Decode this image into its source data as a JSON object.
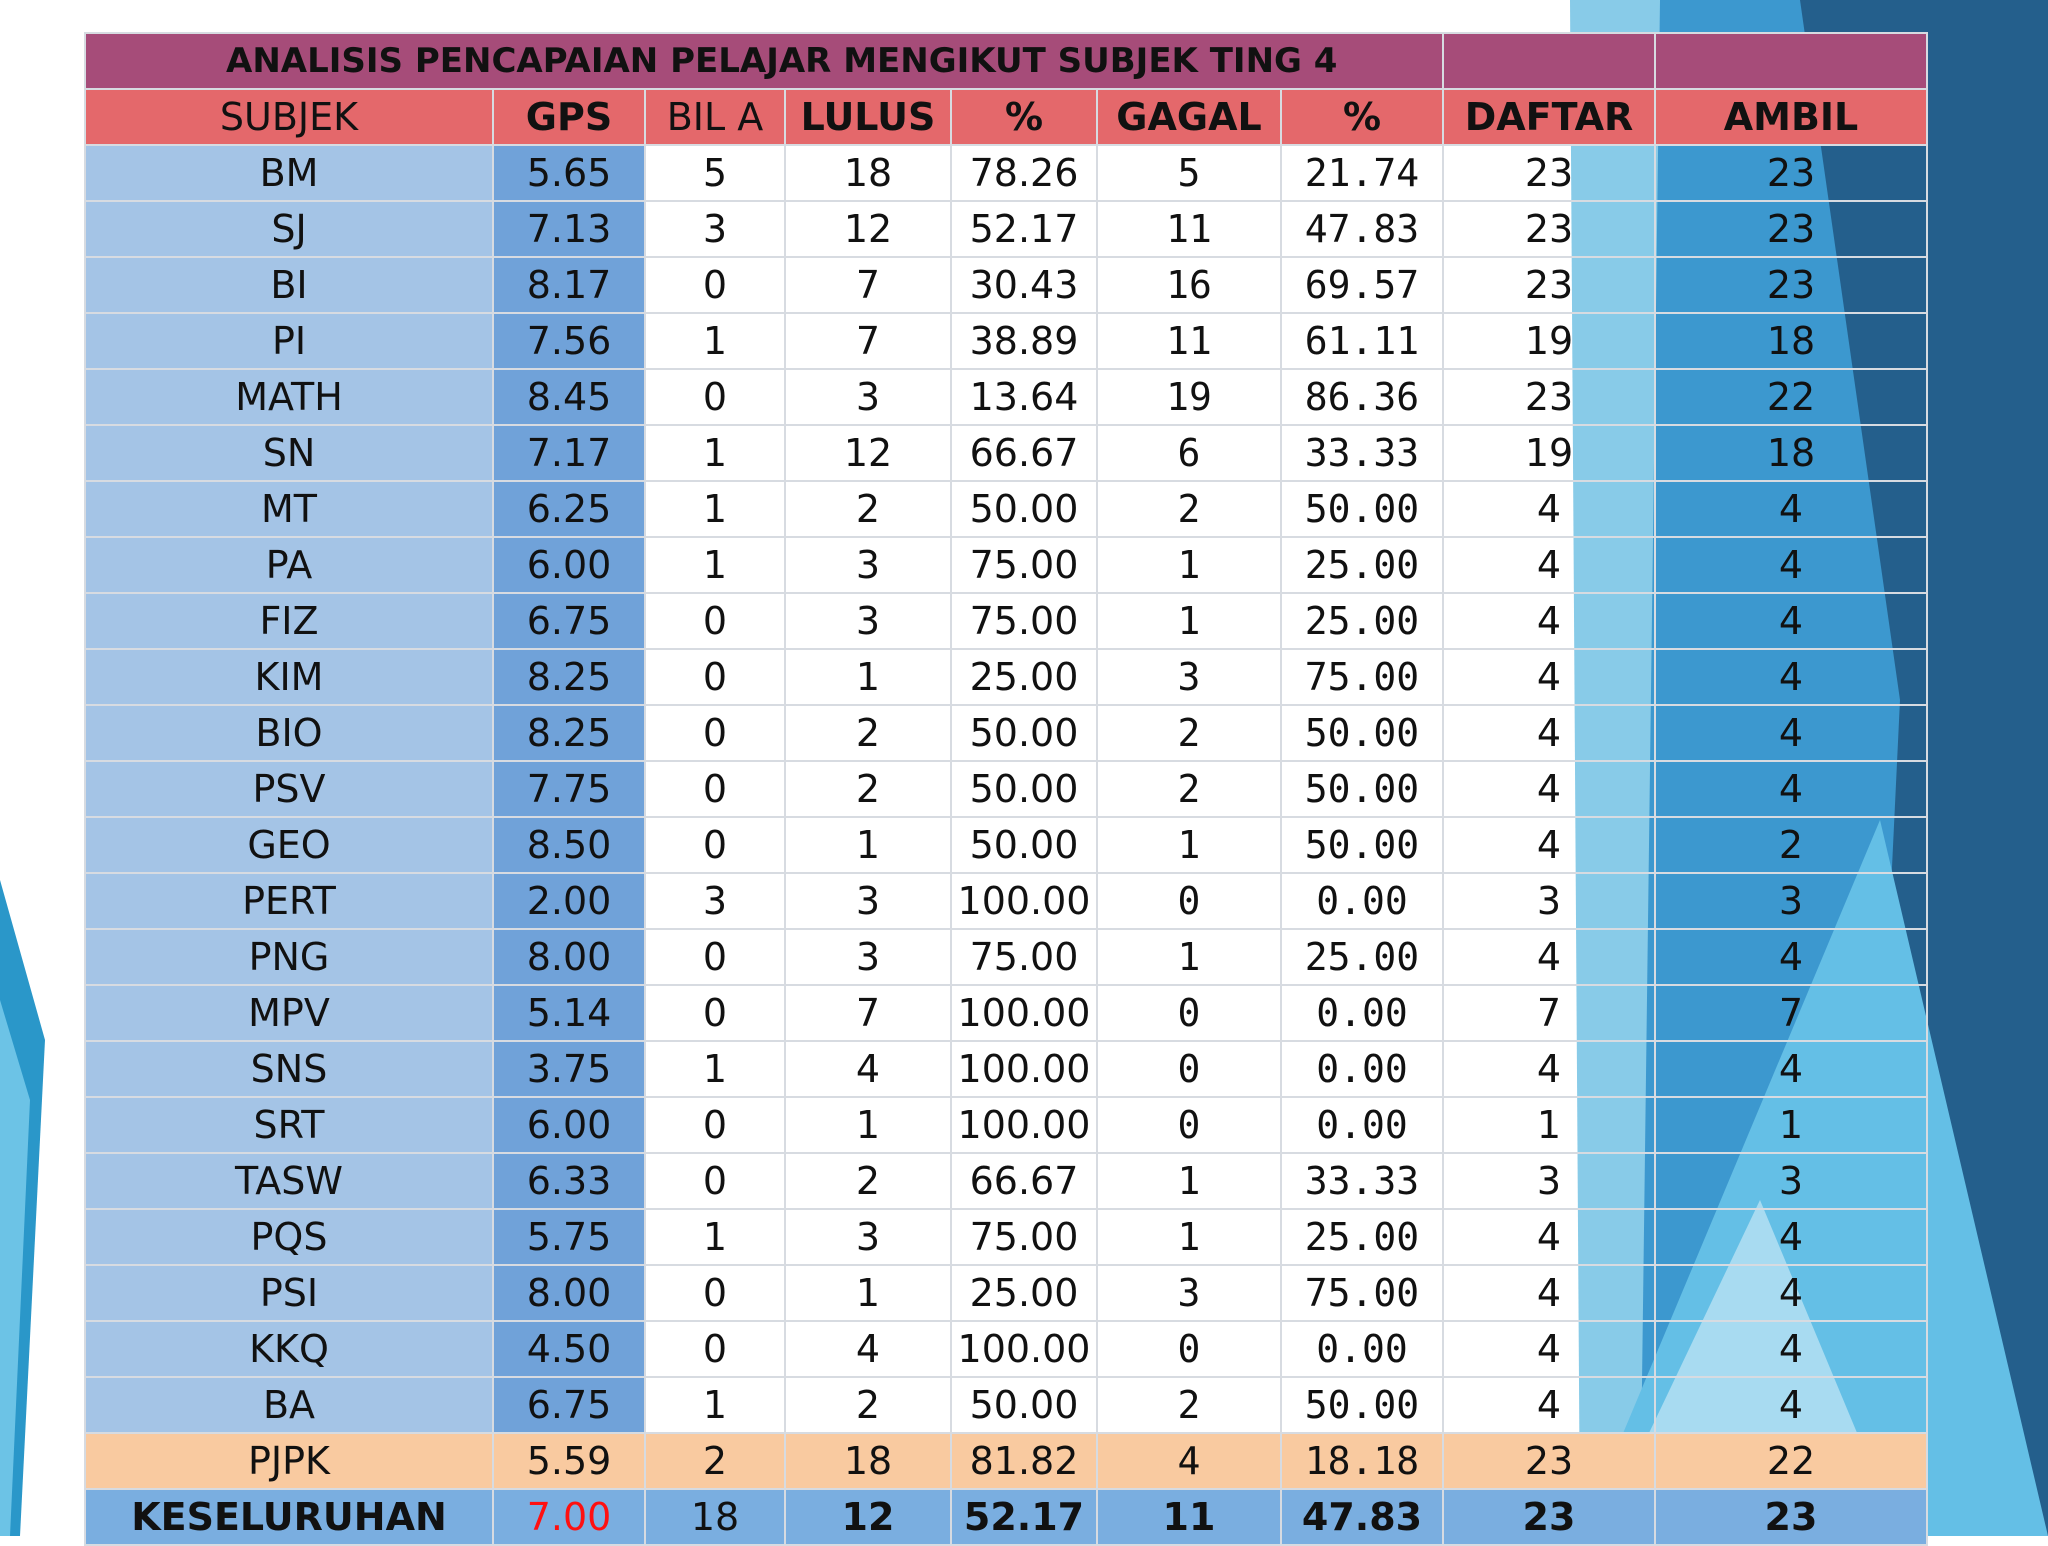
{
  "title": "ANALISIS PENCAPAIAN PELAJAR MENGIKUT SUBJEK TING 4",
  "headers": [
    "SUBJEK",
    "GPS",
    "BIL A",
    "LULUS",
    "%",
    "GAGAL",
    "%",
    "DAFTAR",
    "AMBIL"
  ],
  "rows": [
    [
      "BM",
      "5.65",
      "5",
      "18",
      "78.26",
      "5",
      "21.74",
      "23",
      "23"
    ],
    [
      "SJ",
      "7.13",
      "3",
      "12",
      "52.17",
      "11",
      "47.83",
      "23",
      "23"
    ],
    [
      "BI",
      "8.17",
      "0",
      "7",
      "30.43",
      "16",
      "69.57",
      "23",
      "23"
    ],
    [
      "PI",
      "7.56",
      "1",
      "7",
      "38.89",
      "11",
      "61.11",
      "19",
      "18"
    ],
    [
      "MATH",
      "8.45",
      "0",
      "3",
      "13.64",
      "19",
      "86.36",
      "23",
      "22"
    ],
    [
      "SN",
      "7.17",
      "1",
      "12",
      "66.67",
      "6",
      "33.33",
      "19",
      "18"
    ],
    [
      "MT",
      "6.25",
      "1",
      "2",
      "50.00",
      "2",
      "50.00",
      "4",
      "4"
    ],
    [
      "PA",
      "6.00",
      "1",
      "3",
      "75.00",
      "1",
      "25.00",
      "4",
      "4"
    ],
    [
      "FIZ",
      "6.75",
      "0",
      "3",
      "75.00",
      "1",
      "25.00",
      "4",
      "4"
    ],
    [
      "KIM",
      "8.25",
      "0",
      "1",
      "25.00",
      "3",
      "75.00",
      "4",
      "4"
    ],
    [
      "BIO",
      "8.25",
      "0",
      "2",
      "50.00",
      "2",
      "50.00",
      "4",
      "4"
    ],
    [
      "PSV",
      "7.75",
      "0",
      "2",
      "50.00",
      "2",
      "50.00",
      "4",
      "4"
    ],
    [
      "GEO",
      "8.50",
      "0",
      "1",
      "50.00",
      "1",
      "50.00",
      "4",
      "2"
    ],
    [
      "PERT",
      "2.00",
      "3",
      "3",
      "100.00",
      "0",
      "0.00",
      "3",
      "3"
    ],
    [
      "PNG",
      "8.00",
      "0",
      "3",
      "75.00",
      "1",
      "25.00",
      "4",
      "4"
    ],
    [
      "MPV",
      "5.14",
      "0",
      "7",
      "100.00",
      "0",
      "0.00",
      "7",
      "7"
    ],
    [
      "SNS",
      "3.75",
      "1",
      "4",
      "100.00",
      "0",
      "0.00",
      "4",
      "4"
    ],
    [
      "SRT",
      "6.00",
      "0",
      "1",
      "100.00",
      "0",
      "0.00",
      "1",
      "1"
    ],
    [
      "TASW",
      "6.33",
      "0",
      "2",
      "66.67",
      "1",
      "33.33",
      "3",
      "3"
    ],
    [
      "PQS",
      "5.75",
      "1",
      "3",
      "75.00",
      "1",
      "25.00",
      "4",
      "4"
    ],
    [
      "PSI",
      "8.00",
      "0",
      "1",
      "25.00",
      "3",
      "75.00",
      "4",
      "4"
    ],
    [
      "KKQ",
      "4.50",
      "0",
      "4",
      "100.00",
      "0",
      "0.00",
      "4",
      "4"
    ],
    [
      "BA",
      "6.75",
      "1",
      "2",
      "50.00",
      "2",
      "50.00",
      "4",
      "4"
    ],
    [
      "PJPK",
      "5.59",
      "2",
      "18",
      "81.82",
      "4",
      "18.18",
      "23",
      "22"
    ]
  ],
  "total": [
    "KESELURUHAN",
    "7.00",
    "18",
    "12",
    "52.17",
    "11",
    "47.83",
    "23",
    "23"
  ],
  "colors": {
    "title_bg": "#a64c79",
    "header_bg": "#e4686b",
    "subject_bg": "#a4c4e6",
    "gps_bg": "#70a2d9",
    "highlight_row_bg": "#f9caa0",
    "total_bg": "#7aaee0",
    "total_gps_text": "#ff1010"
  }
}
